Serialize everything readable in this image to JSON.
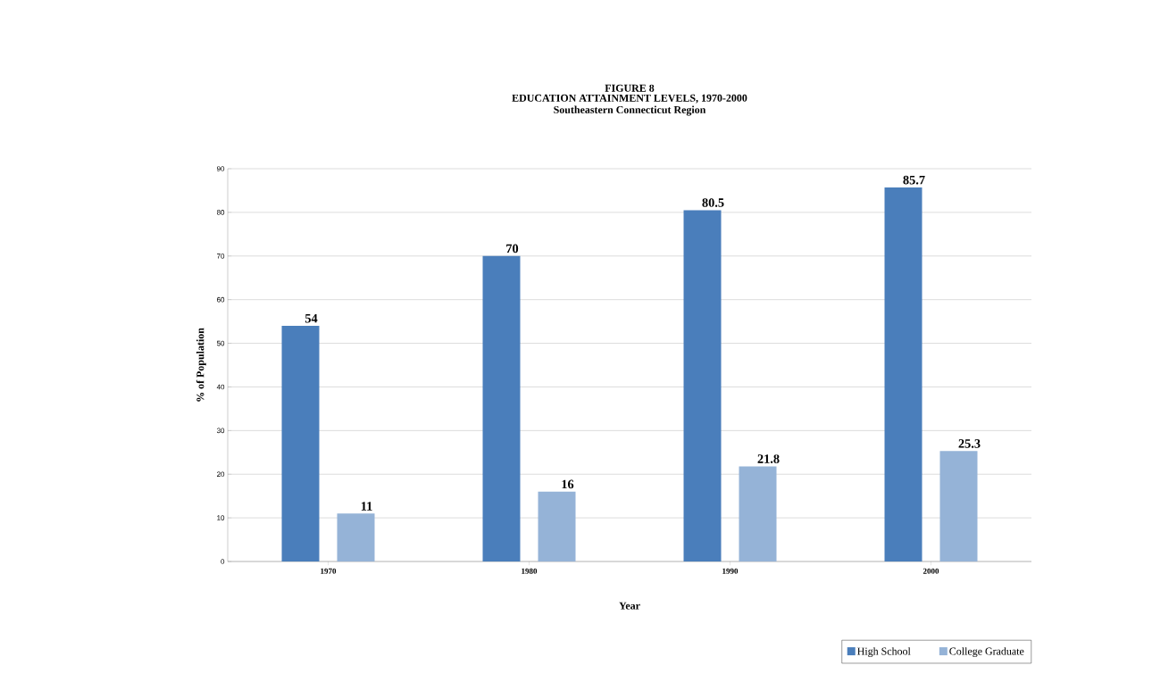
{
  "chart_data": {
    "type": "bar",
    "title": "FIGURE 8",
    "subtitle": "EDUCATION ATTAINMENT LEVELS, 1970-2000",
    "annotations": [
      "Southeastern Connecticut Region"
    ],
    "xlabel": "Year",
    "ylabel": "% of  Population",
    "categories": [
      "1970",
      "1980",
      "1990",
      "2000"
    ],
    "series": [
      {
        "name": "High School",
        "color": "#4a7ebb",
        "values": [
          54,
          70,
          80.5,
          85.7
        ]
      },
      {
        "name": "College Graduate",
        "color": "#95b3d7",
        "values": [
          11,
          16,
          21.8,
          25.3
        ]
      }
    ],
    "ylim": [
      0,
      90
    ],
    "yticks": [
      0,
      10,
      20,
      30,
      40,
      50,
      60,
      70,
      80,
      90
    ],
    "grid": "y",
    "legend": "bottom right",
    "data_labels": true
  }
}
